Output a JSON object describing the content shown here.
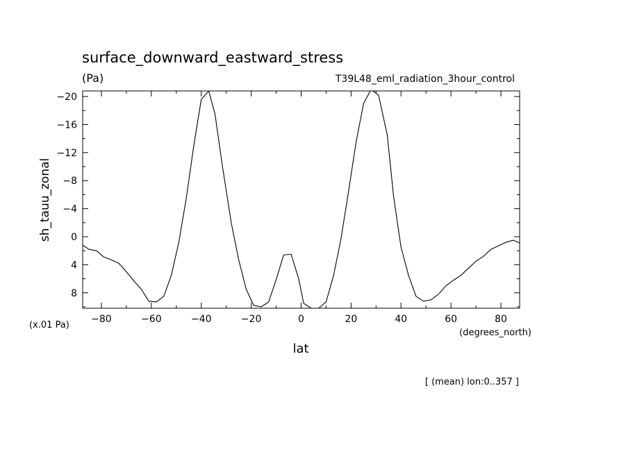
{
  "chart_data": {
    "type": "line",
    "title": "surface_downward_eastward_stress",
    "units_label": "(Pa)",
    "subtitle": "T39L48_eml_radiation_3hour_control",
    "ylabel": "sh_tauu_zonal",
    "yunit_note": "(x.01 Pa)",
    "xlabel": "lat",
    "xunit_note": "(degrees_north)",
    "footer": "[ (mean) lon:0..357 ]",
    "xlim": [
      -87.5,
      87.5
    ],
    "ylim": [
      10.2,
      -20.8
    ],
    "y_inverted": true,
    "grid": false,
    "x_ticks": [
      -80,
      -60,
      -40,
      -20,
      0,
      20,
      40,
      60,
      80
    ],
    "x_tick_labels": [
      "−80",
      "−60",
      "−40",
      "−20",
      "0",
      "20",
      "40",
      "60",
      "80"
    ],
    "y_ticks": [
      -20,
      -16,
      -12,
      -8,
      -4,
      0,
      4,
      8
    ],
    "y_tick_labels": [
      "−20",
      "−16",
      "−12",
      "−8",
      "−4",
      "0",
      "4",
      "8"
    ],
    "series": [
      {
        "x": [
          -87.5,
          -85,
          -82,
          -79,
          -76,
          -73,
          -70,
          -67,
          -64,
          -61,
          -58,
          -55,
          -52,
          -49,
          -46,
          -43,
          -40,
          -37,
          -34.5,
          -31.5,
          -28,
          -25,
          -22,
          -19,
          -16,
          -13,
          -10,
          -7,
          -4,
          -1,
          1,
          4,
          7,
          10,
          13,
          16,
          19,
          22,
          25,
          28,
          31,
          34.5,
          37,
          40,
          43,
          46,
          49,
          52,
          55,
          58,
          61,
          64,
          67,
          70,
          73,
          76,
          79,
          82,
          85,
          87.5
        ],
        "y": [
          1.2,
          1.8,
          2.0,
          2.9,
          3.3,
          3.8,
          5.0,
          6.3,
          7.5,
          9.2,
          9.3,
          8.5,
          5.5,
          0.8,
          -5.5,
          -13.0,
          -19.6,
          -20.8,
          -17.5,
          -10.0,
          -2.0,
          3.3,
          7.5,
          9.8,
          10.0,
          9.3,
          6.1,
          2.6,
          2.5,
          6.0,
          9.5,
          10.2,
          10.2,
          9.3,
          5.5,
          0.2,
          -6.5,
          -13.5,
          -19.0,
          -21.0,
          -20.2,
          -14.5,
          -5.8,
          1.5,
          5.5,
          8.5,
          9.2,
          9.0,
          8.2,
          7.0,
          6.2,
          5.5,
          4.5,
          3.5,
          2.8,
          1.8,
          1.3,
          0.8,
          0.5,
          0.9
        ]
      }
    ]
  }
}
